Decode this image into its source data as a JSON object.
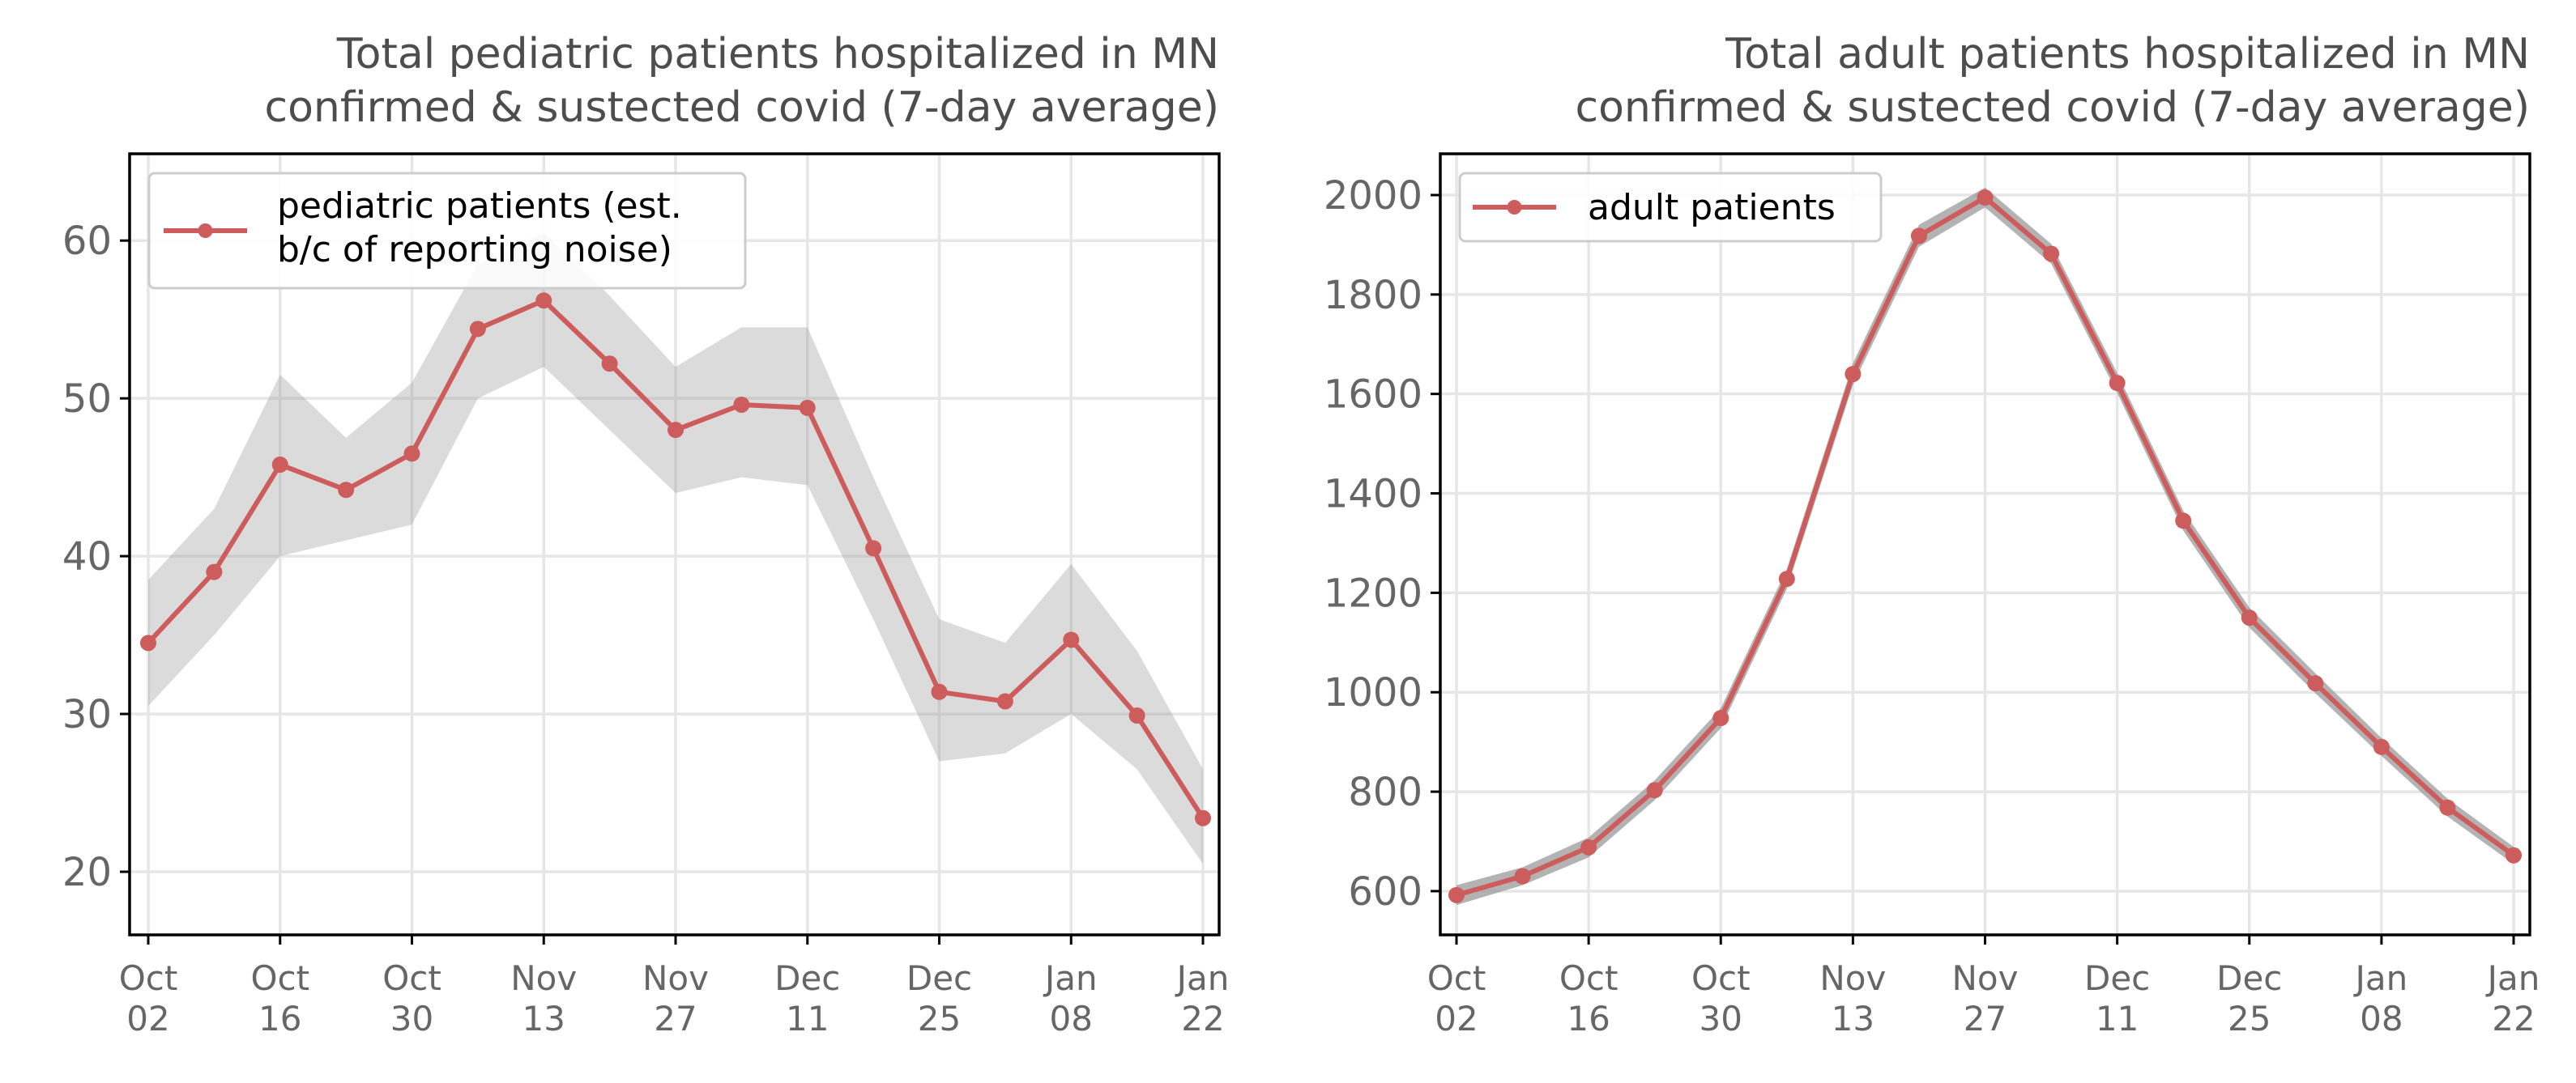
{
  "chart_data": [
    {
      "type": "line",
      "title": [
        "Total pediatric patients hospitalized in MN",
        "confirmed & sustected covid (7-day average)"
      ],
      "xlabel": "",
      "ylabel": "",
      "x": [
        "2021-10-02",
        "2021-10-09",
        "2021-10-16",
        "2021-10-23",
        "2021-10-30",
        "2021-11-06",
        "2021-11-13",
        "2021-11-20",
        "2021-11-27",
        "2021-12-04",
        "2021-12-11",
        "2021-12-18",
        "2021-12-25",
        "2022-01-01",
        "2022-01-08",
        "2022-01-15",
        "2022-01-22"
      ],
      "x_tick_labels": [
        [
          "Oct",
          "02"
        ],
        [
          "Oct",
          "16"
        ],
        [
          "Oct",
          "30"
        ],
        [
          "Nov",
          "13"
        ],
        [
          "Nov",
          "27"
        ],
        [
          "Dec",
          "11"
        ],
        [
          "Dec",
          "25"
        ],
        [
          "Jan",
          "08"
        ],
        [
          "Jan",
          "22"
        ]
      ],
      "y_ticks": [
        20,
        30,
        40,
        50,
        60
      ],
      "ylim": [
        16,
        65.5
      ],
      "grid": true,
      "legend_position": "top-left",
      "series": [
        {
          "name": "pediatric patients (est.\nb/c of reporting noise)",
          "values": [
            34.5,
            39,
            45.8,
            44.2,
            46.5,
            54.4,
            56.2,
            52.2,
            48,
            49.6,
            49.4,
            40.5,
            31.4,
            30.8,
            34.7,
            29.9,
            23.4
          ]
        }
      ],
      "uncertainty_band": {
        "lower": [
          30.5,
          35,
          40,
          41,
          42,
          50,
          52,
          48,
          44,
          45,
          44.5,
          36,
          27,
          27.5,
          30,
          26.5,
          20.5
        ],
        "upper": [
          38.5,
          43,
          51.5,
          47.5,
          51,
          58.5,
          60.5,
          56.5,
          52,
          54.5,
          54.5,
          45,
          36,
          34.5,
          39.5,
          34,
          26.5
        ]
      },
      "colors": {
        "line": "#cd5c5c",
        "band": "#999999"
      }
    },
    {
      "type": "line",
      "title": [
        "Total adult patients hospitalized in MN",
        "confirmed & sustected covid (7-day average)"
      ],
      "xlabel": "",
      "ylabel": "",
      "x": [
        "2021-10-02",
        "2021-10-09",
        "2021-10-16",
        "2021-10-23",
        "2021-10-30",
        "2021-11-06",
        "2021-11-13",
        "2021-11-20",
        "2021-11-27",
        "2021-12-04",
        "2021-12-11",
        "2021-12-18",
        "2021-12-25",
        "2022-01-01",
        "2022-01-08",
        "2022-01-15",
        "2022-01-22"
      ],
      "x_tick_labels": [
        [
          "Oct",
          "02"
        ],
        [
          "Oct",
          "16"
        ],
        [
          "Oct",
          "30"
        ],
        [
          "Nov",
          "13"
        ],
        [
          "Nov",
          "27"
        ],
        [
          "Dec",
          "11"
        ],
        [
          "Dec",
          "25"
        ],
        [
          "Jan",
          "08"
        ],
        [
          "Jan",
          "22"
        ]
      ],
      "y_ticks": [
        600,
        800,
        1000,
        1200,
        1400,
        1600,
        1800,
        2000
      ],
      "ylim": [
        512,
        2083
      ],
      "grid": true,
      "legend_position": "top-left",
      "series": [
        {
          "name": "adult patients",
          "values": [
            592,
            630,
            688,
            803,
            948,
            1228,
            1640,
            1918,
            1995,
            1882,
            1622,
            1345,
            1150,
            1018,
            890,
            768,
            672
          ]
        }
      ],
      "uncertainty_band": {
        "lower": [
          572,
          612,
          668,
          783,
          928,
          1208,
          1618,
          1896,
          1975,
          1862,
          1602,
          1325,
          1130,
          998,
          872,
          750,
          655
        ],
        "upper": [
          612,
          648,
          708,
          823,
          968,
          1248,
          1662,
          1940,
          2015,
          1902,
          1642,
          1365,
          1170,
          1038,
          908,
          786,
          689
        ]
      },
      "colors": {
        "line": "#cd5c5c",
        "band": "#999999"
      }
    }
  ]
}
